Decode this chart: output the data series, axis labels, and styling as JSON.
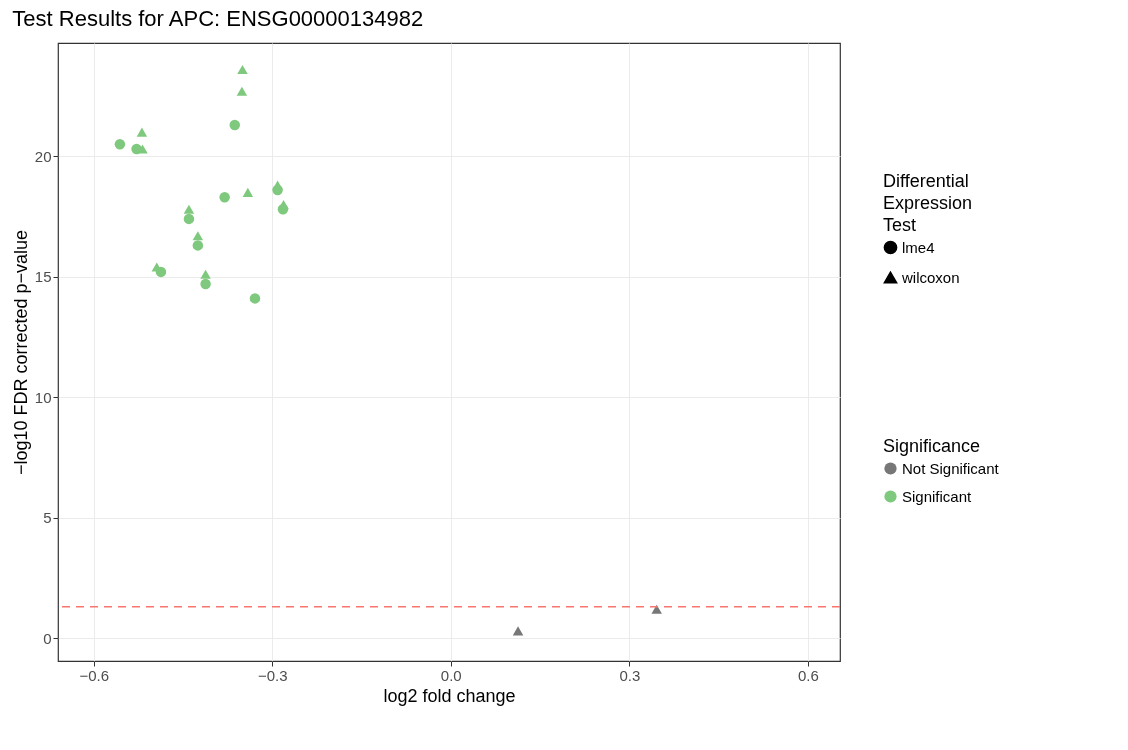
{
  "chart_data": {
    "type": "scatter",
    "title": "Test Results for APC: ENSG00000134982",
    "xlabel": "log2 fold change",
    "ylabel": "−log10 FDR corrected p−value",
    "legend_title": "Differential Expression Test",
    "legend": "right",
    "grid": true,
    "xlim": [
      -0.66,
      0.654
    ],
    "ylim": [
      -0.95,
      24.7
    ],
    "xticks": [
      {
        "value": -0.6,
        "label": "−0.6"
      },
      {
        "value": -0.3,
        "label": "−0.3"
      },
      {
        "value": 0,
        "label": "0.0"
      },
      {
        "value": 0.3,
        "label": "0.3"
      },
      {
        "value": 0.6,
        "label": "0.6"
      }
    ],
    "yticks": [
      0,
      5,
      10,
      15,
      20
    ],
    "ref_lines": [
      {
        "axis": "y",
        "value": 1.3,
        "color": "#f8766d",
        "line_style": "dashed"
      }
    ],
    "annotations": [
      "Significance"
    ],
    "series": [
      {
        "name": "lme4",
        "marker": "circle",
        "colors": [
          "#7fc97f",
          "#7fc97f",
          "#7fc97f",
          "#7fc97f",
          "#7fc97f",
          "#7fc97f",
          "#7fc97f",
          "#7fc97f",
          "#7fc97f",
          "#7fc97f",
          "#7fc97f"
        ],
        "x": [
          -0.556,
          -0.528,
          -0.363,
          -0.38,
          -0.291,
          -0.282,
          -0.44,
          -0.425,
          -0.487,
          -0.412,
          -0.329
        ],
        "values": [
          20.5,
          20.3,
          21.3,
          18.3,
          18.6,
          17.8,
          17.4,
          16.3,
          15.2,
          14.7,
          14.1
        ]
      },
      {
        "name": "wilcoxon",
        "marker": "triangle",
        "colors": [
          "#7fc97f",
          "#7fc97f",
          "#7fc97f",
          "#7fc97f",
          "#7fc97f",
          "#7fc97f",
          "#7fc97f",
          "#7fc97f",
          "#7fc97f",
          "#7fc97f",
          "#7fc97f",
          "#777777",
          "#777777"
        ],
        "x": [
          -0.35,
          -0.351,
          -0.519,
          -0.518,
          -0.341,
          -0.291,
          -0.281,
          -0.44,
          -0.425,
          -0.494,
          -0.412,
          0.113,
          0.346
        ],
        "values": [
          23.6,
          22.7,
          21.0,
          20.3,
          18.5,
          18.8,
          18.0,
          17.8,
          16.7,
          15.4,
          15.1,
          0.3,
          1.2
        ]
      },
      {
        "name": "Not Significant",
        "color": "#777777"
      },
      {
        "name": "Significant",
        "color": "#7fc97f"
      }
    ]
  }
}
